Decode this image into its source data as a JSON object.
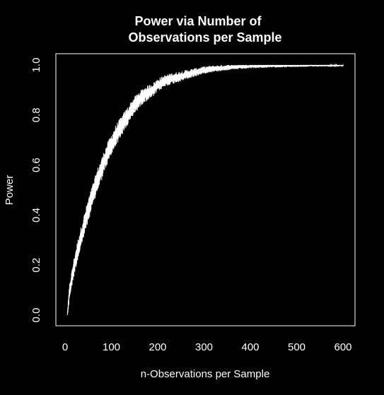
{
  "chart_data": {
    "type": "line",
    "title_line1": "Power via Number of",
    "title_line2": "Observations per Sample",
    "xlabel": "n-Observations per Sample",
    "ylabel": "Power",
    "xlim": [
      0,
      620
    ],
    "ylim": [
      0,
      1.0
    ],
    "x_ticks": [
      0,
      100,
      200,
      300,
      400,
      500,
      600
    ],
    "y_ticks": [
      0.0,
      0.2,
      0.4,
      0.6,
      0.8,
      1.0
    ],
    "x_tick_labels": [
      "0",
      "100",
      "200",
      "300",
      "400",
      "500",
      "600"
    ],
    "y_tick_labels": [
      "0.0",
      "0.2",
      "0.4",
      "0.6",
      "0.8",
      "1.0"
    ],
    "grid": false,
    "legend": "none",
    "series": [
      {
        "x": [
          5,
          10,
          20,
          30,
          40,
          50,
          60,
          70,
          80,
          90,
          100,
          110,
          120,
          130,
          140,
          150,
          160,
          170,
          180,
          190,
          200,
          220,
          240,
          260,
          280,
          300,
          320,
          350,
          400,
          450,
          500,
          550,
          600
        ],
        "y": [
          0.0,
          0.1,
          0.2,
          0.28,
          0.35,
          0.42,
          0.48,
          0.54,
          0.59,
          0.64,
          0.68,
          0.72,
          0.75,
          0.78,
          0.81,
          0.84,
          0.86,
          0.88,
          0.89,
          0.9,
          0.92,
          0.94,
          0.95,
          0.96,
          0.97,
          0.98,
          0.985,
          0.99,
          0.995,
          0.997,
          0.998,
          0.999,
          0.999
        ]
      }
    ]
  },
  "colors": {
    "background": "#000000",
    "foreground": "#ffffff"
  }
}
